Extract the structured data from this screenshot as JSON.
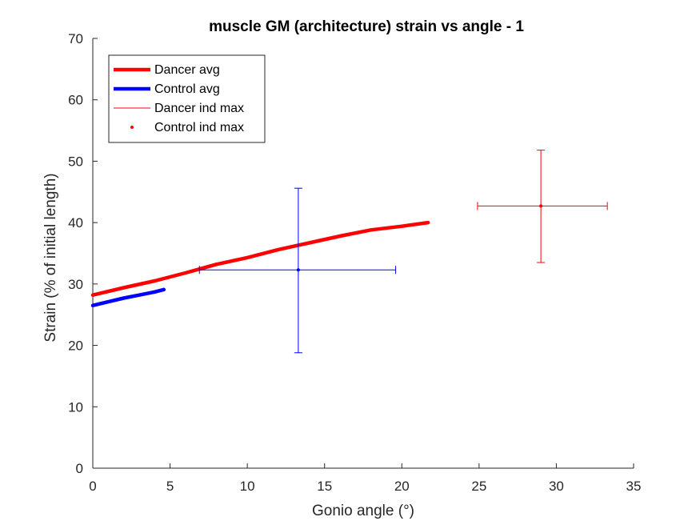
{
  "chart_data": {
    "type": "line",
    "title": "muscle GM (architecture) strain vs angle - 1",
    "xlabel": "Gonio angle (°)",
    "ylabel": "Strain (% of initial length)",
    "xlim": [
      0,
      35
    ],
    "ylim": [
      0,
      70
    ],
    "xticks": [
      0,
      5,
      10,
      15,
      20,
      25,
      30,
      35
    ],
    "yticks": [
      0,
      10,
      20,
      30,
      40,
      50,
      60,
      70
    ],
    "grid": false,
    "legend_location": "top-left",
    "series": [
      {
        "name": "Dancer avg",
        "kind": "line",
        "color": "#ff0000",
        "x": [
          0,
          2,
          4,
          6,
          8,
          10,
          12,
          14,
          16,
          18,
          20,
          21.7
        ],
        "y": [
          28.2,
          29.4,
          30.5,
          31.8,
          33.2,
          34.3,
          35.6,
          36.7,
          37.8,
          38.8,
          39.4,
          40.0
        ]
      },
      {
        "name": "Control avg",
        "kind": "line",
        "color": "#0000ff",
        "x": [
          0,
          1,
          2,
          3,
          4,
          4.6
        ],
        "y": [
          26.5,
          27.1,
          27.7,
          28.2,
          28.7,
          29.1
        ]
      },
      {
        "name": "Dancer ind max",
        "kind": "errorbar",
        "color": "#ff0000",
        "x": 29.0,
        "y": 42.7,
        "xerr": [
          24.9,
          33.3
        ],
        "yerr": [
          33.5,
          51.8
        ]
      },
      {
        "name": "Control ind max",
        "kind": "errorbar",
        "color": "#0000ff",
        "x": 13.3,
        "y": 32.3,
        "xerr": [
          6.9,
          19.6
        ],
        "yerr": [
          18.8,
          45.6
        ]
      }
    ],
    "legend": [
      {
        "label": "Dancer avg",
        "style": "thick-line",
        "color": "#ff0000"
      },
      {
        "label": "Control avg",
        "style": "thick-line",
        "color": "#0000ff"
      },
      {
        "label": "Dancer ind max",
        "style": "thin-line",
        "color": "#ff0000"
      },
      {
        "label": "Control ind max",
        "style": "dot",
        "color": "#ff0000"
      }
    ]
  }
}
